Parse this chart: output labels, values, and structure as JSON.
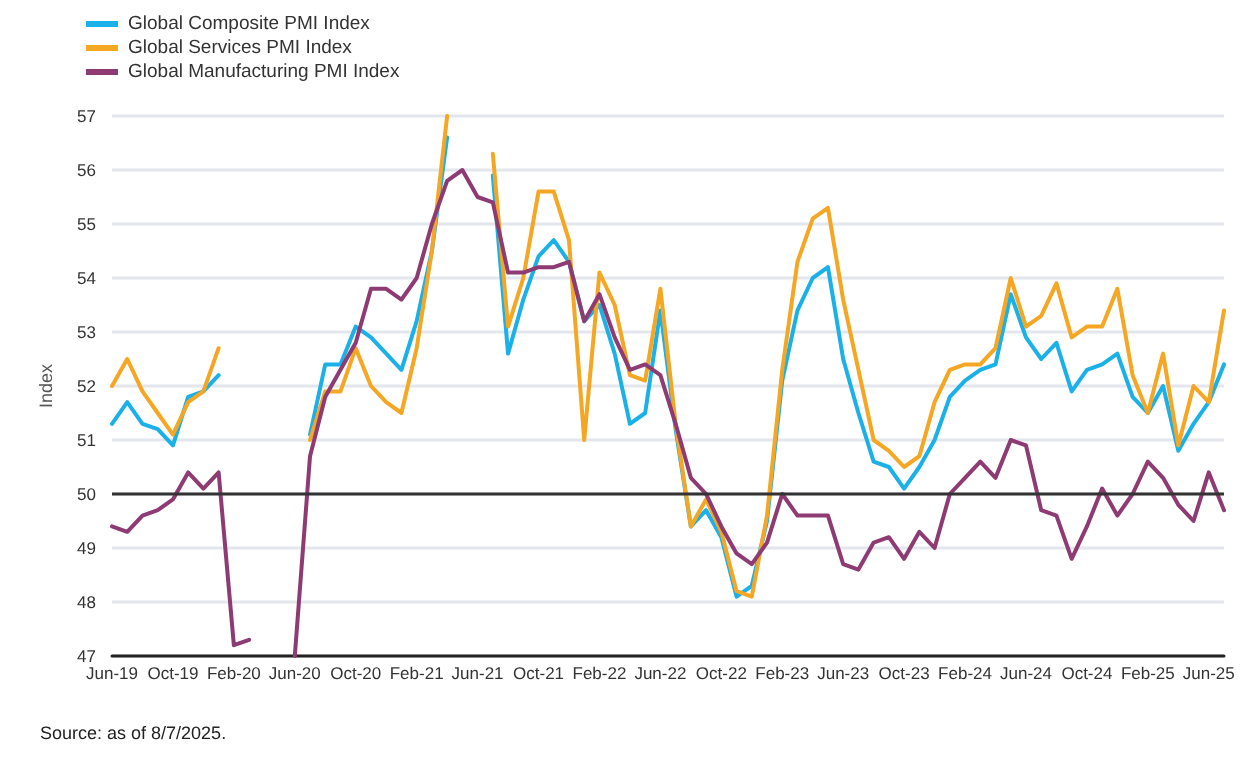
{
  "chart_data": {
    "type": "line",
    "ylabel": "Index",
    "categories": [
      "Jun-19",
      null,
      null,
      null,
      "Oct-19",
      null,
      null,
      null,
      "Feb-20",
      null,
      null,
      null,
      "Jun-20",
      null,
      null,
      null,
      "Oct-20",
      null,
      null,
      null,
      "Feb-21",
      null,
      null,
      null,
      "Jun-21",
      null,
      null,
      null,
      "Oct-21",
      null,
      null,
      null,
      "Feb-22",
      null,
      null,
      null,
      "Jun-22",
      null,
      null,
      null,
      "Oct-22",
      null,
      null,
      null,
      "Feb-23",
      null,
      null,
      null,
      "Jun-23",
      null,
      null,
      null,
      "Oct-23",
      null,
      null,
      null,
      "Feb-24",
      null,
      null,
      null,
      "Jun-24",
      null,
      null,
      null,
      "Oct-24",
      null,
      null,
      null,
      "Feb-25",
      null,
      null,
      null,
      "Jun-25",
      null
    ],
    "series": [
      {
        "name": "Global Composite PMI Index",
        "color": "#1ab0e8",
        "values": [
          51.3,
          51.7,
          51.3,
          51.2,
          50.9,
          51.8,
          51.9,
          52.2,
          null,
          null,
          null,
          null,
          null,
          51.1,
          52.4,
          52.4,
          53.1,
          52.9,
          52.6,
          52.3,
          53.2,
          54.5,
          56.6,
          null,
          null,
          55.9,
          52.6,
          53.6,
          54.4,
          54.7,
          54.3,
          53.2,
          53.5,
          52.6,
          51.3,
          51.5,
          53.4,
          51.2,
          49.4,
          49.7,
          49.2,
          48.1,
          48.3,
          49.5,
          52.1,
          53.4,
          54.0,
          54.2,
          52.5,
          51.5,
          50.6,
          50.5,
          50.1,
          50.5,
          51.0,
          51.8,
          52.1,
          52.3,
          52.4,
          53.7,
          52.9,
          52.5,
          52.8,
          51.9,
          52.3,
          52.4,
          52.6,
          51.8,
          51.5,
          52.0,
          50.8,
          51.3,
          51.7,
          52.4
        ]
      },
      {
        "name": "Global Services PMI Index",
        "color": "#f5a623",
        "values": [
          52.0,
          52.5,
          51.9,
          51.5,
          51.1,
          51.7,
          51.9,
          52.7,
          null,
          null,
          null,
          null,
          null,
          51.0,
          51.9,
          51.9,
          52.7,
          52.0,
          51.7,
          51.5,
          52.7,
          54.5,
          57.0,
          null,
          null,
          56.3,
          53.1,
          54.0,
          55.6,
          55.6,
          54.7,
          51.0,
          54.1,
          53.5,
          52.2,
          52.1,
          53.8,
          51.3,
          49.4,
          49.9,
          49.3,
          48.2,
          48.1,
          49.6,
          52.3,
          54.3,
          55.1,
          55.3,
          53.6,
          52.3,
          51.0,
          50.8,
          50.5,
          50.7,
          51.7,
          52.3,
          52.4,
          52.4,
          52.7,
          54.0,
          53.1,
          53.3,
          53.9,
          52.9,
          53.1,
          53.1,
          53.8,
          52.2,
          51.5,
          52.6,
          50.9,
          52.0,
          51.7,
          53.4
        ]
      },
      {
        "name": "Global Manufacturing PMI Index",
        "color": "#8e3b73",
        "values": [
          49.4,
          49.3,
          49.6,
          49.7,
          49.9,
          50.4,
          50.1,
          50.4,
          47.2,
          47.3,
          null,
          null,
          47.0,
          50.7,
          51.8,
          52.3,
          52.8,
          53.8,
          53.8,
          53.6,
          54.0,
          55.0,
          55.8,
          56.0,
          55.5,
          55.4,
          54.1,
          54.1,
          54.2,
          54.2,
          54.3,
          53.2,
          53.7,
          52.9,
          52.3,
          52.4,
          52.2,
          51.3,
          50.3,
          50.0,
          49.4,
          48.9,
          48.7,
          49.1,
          50.0,
          49.6,
          49.6,
          49.6,
          48.7,
          48.6,
          49.1,
          49.2,
          48.8,
          49.3,
          49.0,
          50.0,
          50.3,
          50.6,
          50.3,
          51.0,
          50.9,
          49.7,
          49.6,
          48.8,
          49.4,
          50.1,
          49.6,
          50.0,
          50.6,
          50.3,
          49.8,
          49.5,
          50.4,
          49.7
        ]
      }
    ],
    "ylim": [
      47,
      57
    ],
    "yticks": [
      47,
      48,
      49,
      50,
      51,
      52,
      53,
      54,
      55,
      56,
      57
    ],
    "grid": "y",
    "legend": "top left",
    "marker": "none",
    "line_style": "solid",
    "ref_lines": [
      {
        "axis": "y",
        "value": 50,
        "color": "#333333"
      }
    ],
    "annotations": [
      "Source: as of 8/7/2025."
    ]
  }
}
